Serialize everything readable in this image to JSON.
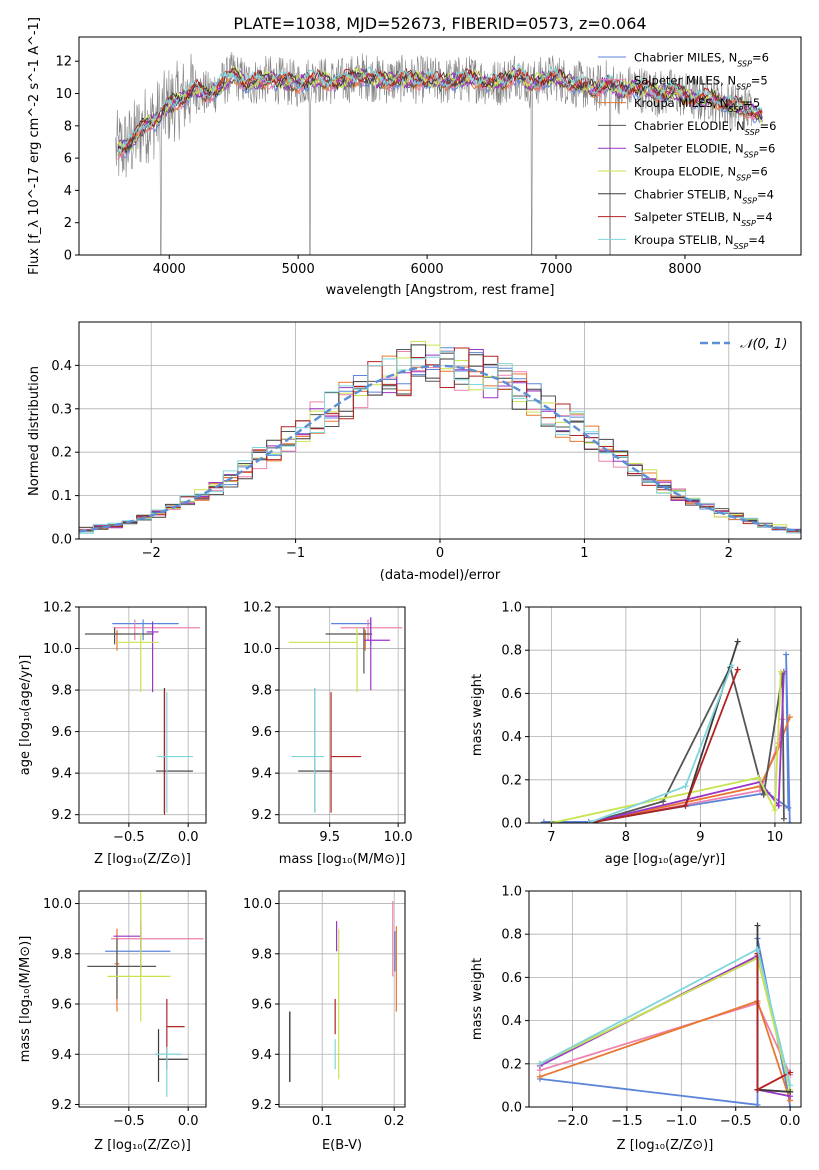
{
  "figure_title": "PLATE=1038, MJD=52673, FIBERID=0573, z=0.064",
  "colors": [
    "#5B85D9",
    "#EE82AE",
    "#E8762D",
    "#555555",
    "#9A35C8",
    "#C8E34E",
    "#3A3A3A",
    "#B22222",
    "#7FD6DC"
  ],
  "series_names": [
    "Chabrier MILES, N_SSP=6",
    "Salpeter MILES, N_SSP=5",
    "Kroupa MILES, N_SSP=5",
    "Chabrier ELODIE, N_SSP=6",
    "Salpeter ELODIE, N_SSP=6",
    "Kroupa ELODIE, N_SSP=6",
    "Chabrier STELIB, N_SSP=4",
    "Salpeter STELIB, N_SSP=4",
    "Kroupa STELIB, N_SSP=4"
  ],
  "chart_data": [
    {
      "id": "spectrum",
      "type": "line",
      "xlabel": "wavelength [Angstrom, rest frame]",
      "ylabel": "Flux [f_λ 10^-17 erg cm^-2 s^-1 A^-1]",
      "xlim": [
        3300,
        8900
      ],
      "ylim": [
        0,
        13.5
      ],
      "xticks": [
        4000,
        5000,
        6000,
        7000,
        8000
      ],
      "yticks": [
        0,
        2,
        4,
        6,
        8,
        10,
        12
      ],
      "legend_position": "top-right",
      "legend": [
        {
          "prefix": "Chabrier MILES, N",
          "sub": "SSP",
          "suffix": "=6"
        },
        {
          "prefix": "Salpeter MILES, N",
          "sub": "SSP",
          "suffix": "=5"
        },
        {
          "prefix": "Kroupa MILES, N",
          "sub": "SSP",
          "suffix": "=5"
        },
        {
          "prefix": "Chabrier ELODIE, N",
          "sub": "SSP",
          "suffix": "=6"
        },
        {
          "prefix": "Salpeter ELODIE, N",
          "sub": "SSP",
          "suffix": "=6"
        },
        {
          "prefix": "Kroupa ELODIE, N",
          "sub": "SSP",
          "suffix": "=6"
        },
        {
          "prefix": "Chabrier STELIB, N",
          "sub": "SSP",
          "suffix": "=4"
        },
        {
          "prefix": "Salpeter STELIB, N",
          "sub": "SSP",
          "suffix": "=4"
        },
        {
          "prefix": "Kroupa STELIB, N",
          "sub": "SSP",
          "suffix": "=4"
        }
      ],
      "observed_color": "#808080",
      "x": [
        3600,
        3700,
        3800,
        3900,
        4000,
        4100,
        4200,
        4300,
        4400,
        4500,
        4600,
        4700,
        4800,
        4900,
        5000,
        5100,
        5200,
        5300,
        5400,
        5500,
        5600,
        5700,
        5800,
        5900,
        6000,
        6100,
        6200,
        6300,
        6400,
        6500,
        6600,
        6700,
        6800,
        6900,
        7000,
        7100,
        7200,
        7300,
        7400,
        7500,
        7600,
        7700,
        7800,
        7900,
        8000,
        8100,
        8200,
        8300,
        8400,
        8500,
        8600
      ],
      "model_flux": [
        6.5,
        6.9,
        8.0,
        8.4,
        9.3,
        9.7,
        10.3,
        9.9,
        10.5,
        11.2,
        10.6,
        10.8,
        10.9,
        10.7,
        10.6,
        10.9,
        10.8,
        10.7,
        10.9,
        11.1,
        10.9,
        10.8,
        10.9,
        10.8,
        10.9,
        10.7,
        10.8,
        10.9,
        10.9,
        10.6,
        10.8,
        11.3,
        10.5,
        10.9,
        11.0,
        10.7,
        10.5,
        10.2,
        10.7,
        10.1,
        10.4,
        10.2,
        10.0,
        10.1,
        9.9,
        9.6,
        9.8,
        9.4,
        9.2,
        9.0,
        8.6
      ],
      "observed_dips": [
        [
          3934,
          0.0
        ],
        [
          5090,
          0.0
        ],
        [
          6810,
          0.0
        ],
        [
          7420,
          0.0
        ]
      ]
    },
    {
      "id": "residuals",
      "type": "histogram",
      "xlabel": "(data-model)/error",
      "ylabel": "Normed distribution",
      "xlim": [
        -2.5,
        2.5
      ],
      "ylim": [
        0,
        0.5
      ],
      "xticks": [
        -2,
        -1,
        0,
        1,
        2
      ],
      "yticks": [
        0.0,
        0.1,
        0.2,
        0.3,
        0.4
      ],
      "bin_width": 0.1,
      "reference_label": "N(0,1)",
      "reference_color": "#5B8FD6",
      "legend_position": "top-right"
    },
    {
      "id": "age-vs-Z",
      "type": "errorbar",
      "xlabel": "Z [log10(Z/Z⊙)]",
      "ylabel": "age [log10(age/yr)]",
      "xlim": [
        -0.92,
        0.15
      ],
      "ylim": [
        9.16,
        10.2
      ],
      "xticks": [
        -0.5,
        0.0
      ],
      "yticks": [
        9.2,
        9.4,
        9.6,
        9.8,
        10.0,
        10.2
      ],
      "points": [
        {
          "x": -0.38,
          "y": 10.12,
          "xerr": [
            0.26,
            0.3
          ],
          "yerr": [
            0.08,
            0.02
          ]
        },
        {
          "x": -0.45,
          "y": 10.1,
          "xerr": [
            0.18,
            0.55
          ],
          "yerr": [
            0.06,
            0.04
          ]
        },
        {
          "x": -0.6,
          "y": 10.07,
          "xerr": [
            0.02,
            0.04
          ],
          "yerr": [
            0.08,
            0.02
          ]
        },
        {
          "x": -0.62,
          "y": 10.07,
          "xerr": [
            0.25,
            0.33
          ],
          "yerr": [
            0.05,
            0.03
          ]
        },
        {
          "x": -0.3,
          "y": 10.08,
          "xerr": [
            0.05,
            0.05
          ],
          "yerr": [
            0.29,
            0.05
          ]
        },
        {
          "x": -0.4,
          "y": 10.03,
          "xerr": [
            0.2,
            0.15
          ],
          "yerr": [
            0.24,
            0.04
          ]
        },
        {
          "x": -0.2,
          "y": 9.41,
          "xerr": [
            0.07,
            0.24
          ],
          "yerr": [
            0.2,
            0.4
          ]
        },
        {
          "x": -0.2,
          "y": 9.41,
          "xerr": [
            0.0,
            0.0
          ],
          "yerr": [
            0.21,
            0.39
          ]
        },
        {
          "x": -0.18,
          "y": 9.48,
          "xerr": [
            0.08,
            0.22
          ],
          "yerr": [
            0.27,
            0.31
          ]
        }
      ]
    },
    {
      "id": "age-vs-mass",
      "type": "errorbar",
      "xlabel": "mass [log10(M/M⊙)]",
      "ylabel": "",
      "xlim": [
        9.13,
        10.05
      ],
      "ylim": [
        9.16,
        10.2
      ],
      "xticks": [
        9.5,
        10.0
      ],
      "yticks": [
        9.2,
        9.4,
        9.6,
        9.8,
        10.0,
        10.2
      ],
      "points": [
        {
          "x": 9.8,
          "y": 10.12,
          "xerr": [
            0.29,
            0.0
          ],
          "yerr": [
            0.1,
            0.03
          ]
        },
        {
          "x": 9.78,
          "y": 10.1,
          "xerr": [
            0.2,
            0.25
          ],
          "yerr": [
            0.06,
            0.04
          ]
        },
        {
          "x": 9.76,
          "y": 10.07,
          "xerr": [
            0.05,
            0.05
          ],
          "yerr": [
            0.08,
            0.02
          ]
        },
        {
          "x": 9.75,
          "y": 10.07,
          "xerr": [
            0.28,
            0.06
          ],
          "yerr": [
            0.19,
            0.03
          ]
        },
        {
          "x": 9.8,
          "y": 10.04,
          "xerr": [
            0.05,
            0.14
          ],
          "yerr": [
            0.24,
            0.11
          ]
        },
        {
          "x": 9.7,
          "y": 10.03,
          "xerr": [
            0.5,
            0.0
          ],
          "yerr": [
            0.24,
            0.07
          ]
        },
        {
          "x": 9.39,
          "y": 9.41,
          "xerr": [
            0.12,
            0.13
          ],
          "yerr": [
            0.2,
            0.4
          ]
        },
        {
          "x": 9.51,
          "y": 9.48,
          "xerr": [
            0.0,
            0.22
          ],
          "yerr": [
            0.27,
            0.31
          ]
        },
        {
          "x": 9.39,
          "y": 9.48,
          "xerr": [
            0.17,
            0.07
          ],
          "yerr": [
            0.27,
            0.33
          ]
        }
      ]
    },
    {
      "id": "weight-vs-age",
      "type": "line",
      "xlabel": "age [log10(age/yr)]",
      "ylabel": "mass weight",
      "xlim": [
        6.7,
        10.35
      ],
      "ylim": [
        0,
        1.0
      ],
      "xticks": [
        7,
        8,
        9,
        10
      ],
      "yticks": [
        0.0,
        0.2,
        0.4,
        0.6,
        0.8,
        1.0
      ],
      "series": [
        {
          "x": [
            6.9,
            7.5,
            9.9,
            10.18,
            10.15,
            10.2
          ],
          "y": [
            0.005,
            0.005,
            0.14,
            0.07,
            0.78,
            0.0
          ]
        },
        {
          "x": [
            7.5,
            9.8,
            10.05,
            10.1
          ],
          "y": [
            0.0,
            0.15,
            0.37,
            0.48
          ]
        },
        {
          "x": [
            7.5,
            9.8,
            10.05,
            10.2
          ],
          "y": [
            0.0,
            0.17,
            0.35,
            0.49
          ]
        },
        {
          "x": [
            7.5,
            8.5,
            9.4,
            9.85,
            10.1,
            10.12
          ],
          "y": [
            0.0,
            0.1,
            0.72,
            0.13,
            0.69,
            0.02
          ]
        },
        {
          "x": [
            7.5,
            9.8,
            10.05,
            10.12
          ],
          "y": [
            0.0,
            0.19,
            0.08,
            0.7
          ]
        },
        {
          "x": [
            7.0,
            9.78,
            10.0,
            10.08
          ],
          "y": [
            0.0,
            0.21,
            0.06,
            0.7
          ]
        },
        {
          "x": [
            7.5,
            8.8,
            9.5
          ],
          "y": [
            0.0,
            0.08,
            0.84
          ]
        },
        {
          "x": [
            7.5,
            8.8,
            9.5
          ],
          "y": [
            0.0,
            0.08,
            0.71
          ]
        },
        {
          "x": [
            7.5,
            8.8,
            9.42
          ],
          "y": [
            0.0,
            0.17,
            0.73
          ]
        }
      ]
    },
    {
      "id": "mass-vs-Z",
      "type": "errorbar",
      "xlabel": "Z [log10(Z/Z⊙)]",
      "ylabel": "mass [log10(M/M⊙)]",
      "xlim": [
        -0.92,
        0.15
      ],
      "ylim": [
        9.19,
        10.05
      ],
      "xticks": [
        -0.5,
        0.0
      ],
      "yticks": [
        9.2,
        9.4,
        9.6,
        9.8,
        10.0
      ],
      "points": [
        {
          "x": -0.4,
          "y": 9.81,
          "xerr": [
            0.3,
            0.25
          ],
          "yerr": [
            0.07,
            0.07
          ]
        },
        {
          "x": -0.4,
          "y": 9.86,
          "xerr": [
            0.25,
            0.53
          ],
          "yerr": [
            0.15,
            0.15
          ]
        },
        {
          "x": -0.6,
          "y": 9.76,
          "xerr": [
            0.02,
            0.02
          ],
          "yerr": [
            0.19,
            0.14
          ]
        },
        {
          "x": -0.6,
          "y": 9.75,
          "xerr": [
            0.25,
            0.33
          ],
          "yerr": [
            0.13,
            0.11
          ]
        },
        {
          "x": -0.4,
          "y": 9.87,
          "xerr": [
            0.23,
            0.0
          ],
          "yerr": [
            0.06,
            0.06
          ]
        },
        {
          "x": -0.4,
          "y": 9.71,
          "xerr": [
            0.28,
            0.25
          ],
          "yerr": [
            0.18,
            0.41
          ]
        },
        {
          "x": -0.25,
          "y": 9.38,
          "xerr": [
            0.0,
            0.25
          ],
          "yerr": [
            0.09,
            0.12
          ]
        },
        {
          "x": -0.18,
          "y": 9.51,
          "xerr": [
            0.0,
            0.15
          ],
          "yerr": [
            0.17,
            0.11
          ]
        },
        {
          "x": -0.18,
          "y": 9.4,
          "xerr": [
            0.1,
            0.12
          ],
          "yerr": [
            0.17,
            0.03
          ]
        }
      ]
    },
    {
      "id": "mass-vs-EBV",
      "type": "errorbar",
      "xlabel": "E(B-V)",
      "ylabel": "",
      "xlim": [
        0.04,
        0.215
      ],
      "ylim": [
        9.19,
        10.05
      ],
      "xticks": [
        0.1,
        0.2
      ],
      "yticks": [
        9.2,
        9.4,
        9.6,
        9.8,
        10.0
      ],
      "points": [
        {
          "x": 0.201,
          "y": 9.81,
          "xerr": [
            0,
            0
          ],
          "yerr": [
            0.08,
            0.08
          ]
        },
        {
          "x": 0.198,
          "y": 9.86,
          "xerr": [
            0,
            0
          ],
          "yerr": [
            0.15,
            0.15
          ]
        },
        {
          "x": 0.203,
          "y": 9.76,
          "xerr": [
            0,
            0
          ],
          "yerr": [
            0.19,
            0.15
          ]
        },
        {
          "x": 0.055,
          "y": 9.43,
          "xerr": [
            0,
            0
          ],
          "yerr": [
            0.14,
            0.14
          ]
        },
        {
          "x": 0.12,
          "y": 9.87,
          "xerr": [
            0,
            0
          ],
          "yerr": [
            0.06,
            0.06
          ]
        },
        {
          "x": 0.123,
          "y": 9.6,
          "xerr": [
            0,
            0
          ],
          "yerr": [
            0.3,
            0.3
          ]
        },
        {
          "x": 0.055,
          "y": 9.43,
          "xerr": [
            0,
            0
          ],
          "yerr": [
            0.14,
            0.14
          ]
        },
        {
          "x": 0.118,
          "y": 9.55,
          "xerr": [
            0,
            0
          ],
          "yerr": [
            0.07,
            0.07
          ]
        },
        {
          "x": 0.118,
          "y": 9.38,
          "xerr": [
            0,
            0
          ],
          "yerr": [
            0.04,
            0.08
          ]
        }
      ]
    },
    {
      "id": "weight-vs-Z",
      "type": "line",
      "xlabel": "Z [log10(Z/Z⊙)]",
      "ylabel": "mass weight",
      "xlim": [
        -2.4,
        0.1
      ],
      "ylim": [
        0,
        1.0
      ],
      "xticks": [
        -2.0,
        -1.5,
        -1.0,
        -0.5,
        0.0
      ],
      "yticks": [
        0.0,
        0.2,
        0.4,
        0.6,
        0.8,
        1.0
      ],
      "series": [
        {
          "x": [
            -2.3,
            -0.3,
            -0.3,
            -0.02,
            0.0
          ],
          "y": [
            0.13,
            0.01,
            0.78,
            0.07,
            0.0
          ]
        },
        {
          "x": [
            -2.3,
            -0.3,
            0.0
          ],
          "y": [
            0.17,
            0.48,
            0.15
          ]
        },
        {
          "x": [
            -2.3,
            -0.3,
            0.0
          ],
          "y": [
            0.14,
            0.49,
            0.03
          ]
        },
        {
          "x": [
            -2.3,
            -0.3,
            -0.3,
            0.0
          ],
          "y": [
            0.2,
            0.69,
            0.08,
            0.07
          ]
        },
        {
          "x": [
            -2.3,
            -0.3,
            -0.3,
            0.0
          ],
          "y": [
            0.19,
            0.7,
            0.08,
            0.05
          ]
        },
        {
          "x": [
            -2.3,
            -0.3,
            0.0
          ],
          "y": [
            0.2,
            0.69,
            0.08
          ]
        },
        {
          "x": [
            -0.3,
            -0.3,
            0.0
          ],
          "y": [
            0.84,
            0.08,
            0.07
          ]
        },
        {
          "x": [
            -0.3,
            -0.3,
            0.0
          ],
          "y": [
            0.71,
            0.08,
            0.16
          ]
        },
        {
          "x": [
            -2.3,
            -0.3,
            0.0
          ],
          "y": [
            0.2,
            0.73,
            0.1
          ]
        }
      ]
    }
  ]
}
